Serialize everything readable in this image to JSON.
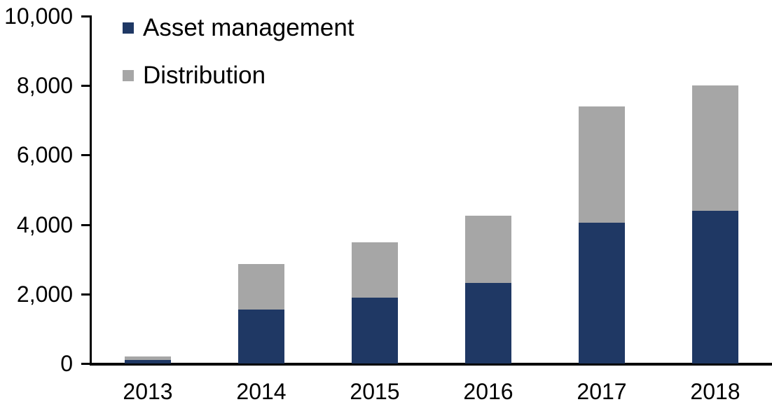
{
  "chart_data": {
    "type": "bar",
    "stacked": true,
    "title": "",
    "xlabel": "",
    "ylabel": "",
    "categories": [
      "2013",
      "2014",
      "2015",
      "2016",
      "2017",
      "2018"
    ],
    "series": [
      {
        "name": "Asset management",
        "color": "#1F3864",
        "values": [
          100,
          1550,
          1900,
          2320,
          4050,
          4400
        ]
      },
      {
        "name": "Distribution",
        "color": "#A6A6A6",
        "values": [
          100,
          1320,
          1600,
          1930,
          3350,
          3600
        ]
      }
    ],
    "totals": [
      200,
      2870,
      3500,
      4250,
      7400,
      8000
    ],
    "ylim": [
      0,
      10000
    ],
    "yticks": [
      0,
      2000,
      4000,
      6000,
      8000,
      10000
    ],
    "ytick_labels": [
      "0",
      "2,000",
      "4,000",
      "6,000",
      "8,000",
      "10,000"
    ],
    "grid": false,
    "legend_position": "top-left"
  },
  "colors": {
    "axis": "#000000",
    "text": "#000000",
    "background": "#FFFFFF",
    "asset_management": "#1F3864",
    "distribution": "#A6A6A6"
  }
}
